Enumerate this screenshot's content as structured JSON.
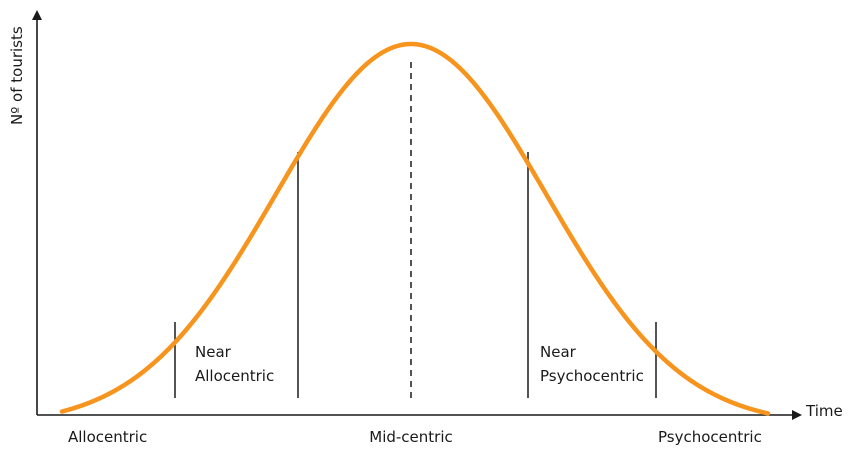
{
  "axes": {
    "y_label": "Nº of tourists",
    "x_label": "Time"
  },
  "bottom_labels": {
    "left": "Allocentric",
    "center": "Mid-centric",
    "right": "Psychocentric"
  },
  "segment_labels": {
    "near_allocentric": [
      "Near",
      "Allocentric"
    ],
    "near_psychocentric": [
      "Near",
      "Psychocentric"
    ]
  },
  "colors": {
    "curve": "#f7941d",
    "axis": "#1a1a1a"
  }
}
